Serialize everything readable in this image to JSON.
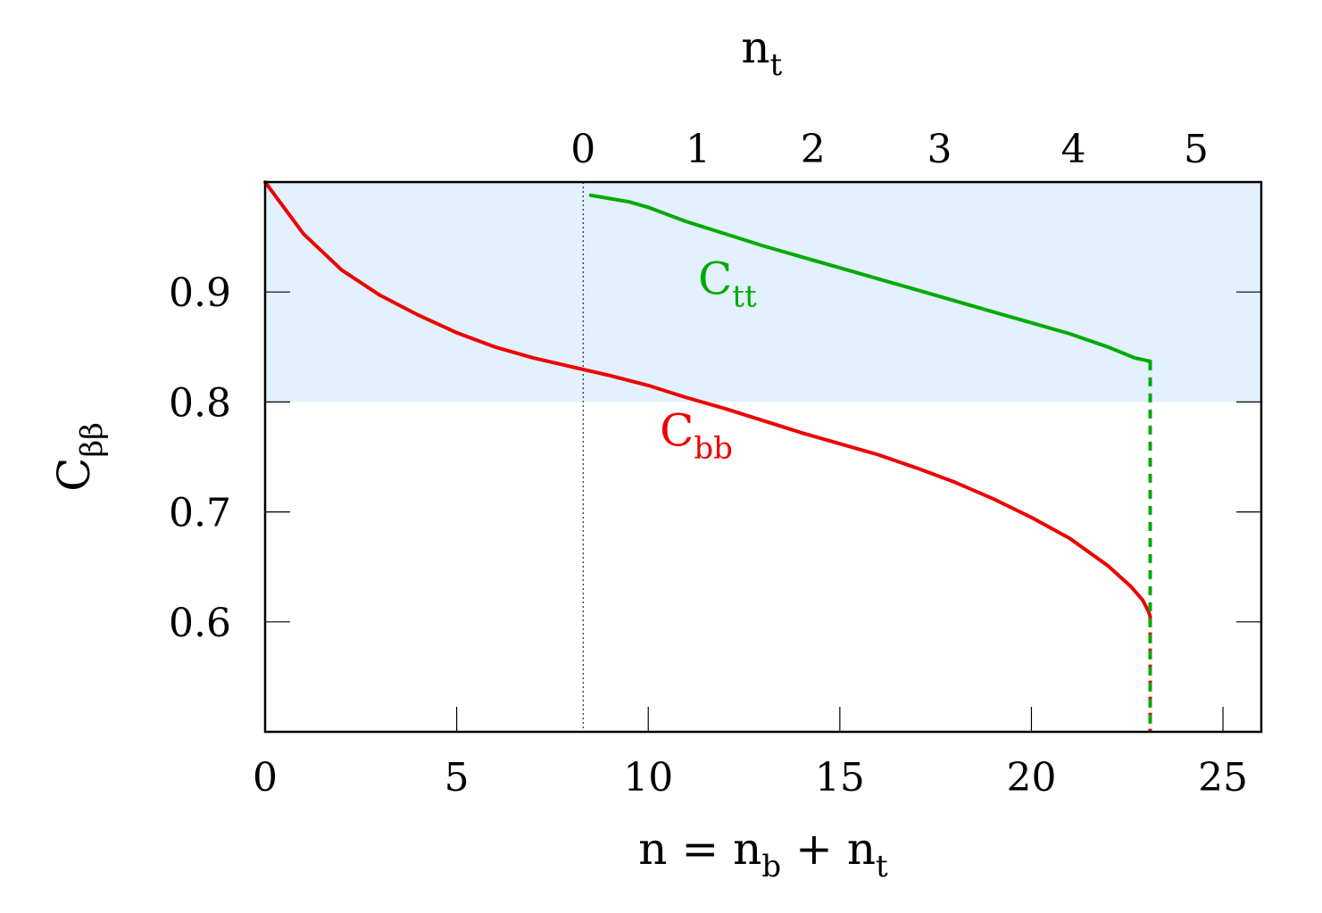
{
  "chart_data": {
    "type": "line",
    "title": "",
    "x_axis": {
      "label": {
        "main": "n = n",
        "sub1": "b",
        "mid": " + n",
        "sub2": "t"
      },
      "range": [
        0,
        26
      ],
      "ticks": [
        0,
        5,
        10,
        15,
        20,
        25
      ]
    },
    "x2_axis": {
      "label": {
        "main": "n",
        "sub": "t"
      },
      "origin_n": 8.3,
      "ticks": [
        {
          "label": "0",
          "n": 8.3
        },
        {
          "label": "1",
          "n": 11.3
        },
        {
          "label": "2",
          "n": 14.3
        },
        {
          "label": "3",
          "n": 17.6
        },
        {
          "label": "4",
          "n": 21.1
        },
        {
          "label": "5",
          "n": 24.3
        }
      ]
    },
    "y_axis": {
      "label": {
        "main": "C",
        "sub": "ββ"
      },
      "range": [
        0.5,
        1.0
      ],
      "ticks": [
        0.6,
        0.7,
        0.8,
        0.9
      ],
      "tick_labels": [
        "0.6",
        "0.7",
        "0.8",
        "0.9"
      ]
    },
    "shaded_band": {
      "y_from": 0.8,
      "y_to": 1.0,
      "color": "#e3f0fd"
    },
    "reference_line": {
      "x": 8.3,
      "style": "dotted"
    },
    "series": [
      {
        "key": "Cbb",
        "label": {
          "main": "C",
          "sub": "bb"
        },
        "color": "#ee0000",
        "x": [
          0,
          1,
          2,
          3,
          4,
          5,
          6,
          7,
          8,
          9,
          10,
          11,
          12,
          13,
          14,
          15,
          16,
          17,
          18,
          19,
          20,
          21,
          22,
          22.6,
          22.9,
          23.05,
          23.1
        ],
        "y": [
          1.0,
          0.953,
          0.92,
          0.897,
          0.879,
          0.863,
          0.85,
          0.84,
          0.832,
          0.824,
          0.815,
          0.804,
          0.794,
          0.783,
          0.772,
          0.762,
          0.752,
          0.74,
          0.727,
          0.712,
          0.695,
          0.676,
          0.651,
          0.632,
          0.62,
          0.61,
          0.605
        ],
        "drop_to": 0.5,
        "drop_style": "dashed",
        "label_at": {
          "x": 10.3,
          "y": 0.76
        }
      },
      {
        "key": "Ctt",
        "label": {
          "main": "C",
          "sub": "tt"
        },
        "color": "#00aa00",
        "x": [
          8.5,
          9,
          9.5,
          10,
          11,
          12,
          13,
          14,
          15,
          16,
          17,
          18,
          19,
          20,
          21,
          22,
          22.7,
          23.1
        ],
        "y": [
          0.988,
          0.985,
          0.982,
          0.977,
          0.964,
          0.953,
          0.942,
          0.932,
          0.922,
          0.912,
          0.902,
          0.892,
          0.882,
          0.872,
          0.862,
          0.85,
          0.84,
          0.837
        ],
        "drop_to": 0.5,
        "drop_style": "dashed",
        "label_at": {
          "x": 11.3,
          "y": 0.898
        }
      }
    ],
    "legend": "none",
    "grid": false
  }
}
